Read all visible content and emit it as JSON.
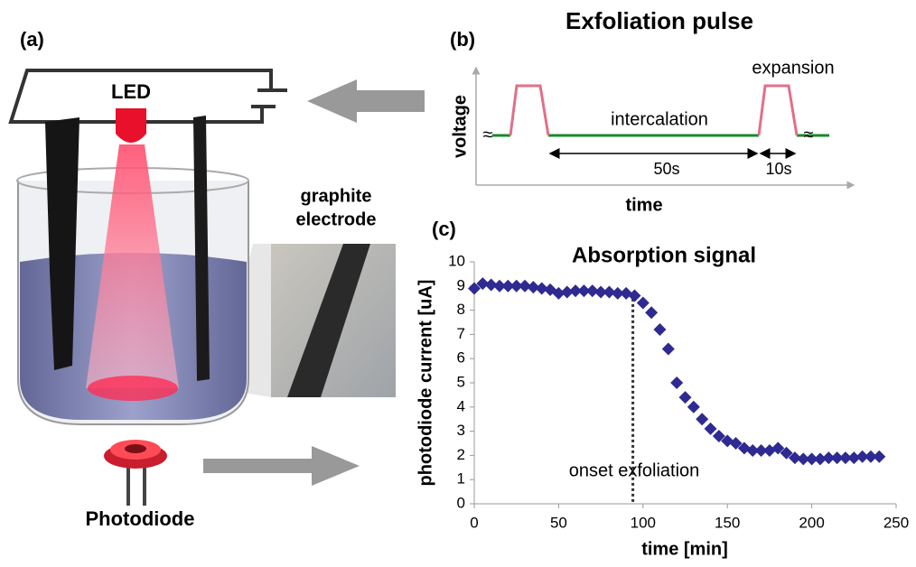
{
  "panel_a": {
    "label": "(a)",
    "led": "LED",
    "electrode_label": [
      "graphite",
      "electrode"
    ],
    "photodiode": "Photodiode"
  },
  "panel_b": {
    "label": "(b)",
    "title": "Exfoliation pulse",
    "ylabel": "voltage",
    "xlabel": "time",
    "intercalation": "intercalation",
    "expansion": "expansion",
    "long_interval": "50s",
    "short_interval": "10s"
  },
  "panel_c_label": "(c)",
  "chart_data": {
    "type": "scatter",
    "title": "Absorption signal",
    "xlabel": "time [min]",
    "ylabel": "photodiode current [uA]",
    "x": [
      0,
      5,
      10,
      15,
      20,
      25,
      30,
      35,
      40,
      45,
      50,
      55,
      60,
      65,
      70,
      75,
      80,
      85,
      90,
      95,
      100,
      105,
      110,
      115,
      120,
      125,
      130,
      135,
      140,
      145,
      150,
      155,
      160,
      165,
      170,
      175,
      180,
      185,
      190,
      195,
      200,
      205,
      210,
      215,
      220,
      225,
      230,
      235,
      240
    ],
    "series": [
      {
        "color": "#2e2a91",
        "values": [
          8.9,
          9.1,
          9.05,
          9.0,
          9.0,
          9.0,
          9.0,
          8.95,
          8.9,
          8.85,
          8.7,
          8.75,
          8.8,
          8.8,
          8.8,
          8.75,
          8.75,
          8.7,
          8.7,
          8.6,
          8.3,
          7.9,
          7.2,
          6.4,
          5.0,
          4.4,
          4.0,
          3.5,
          3.1,
          2.8,
          2.6,
          2.5,
          2.3,
          2.2,
          2.2,
          2.2,
          2.3,
          2.1,
          1.9,
          1.85,
          1.85,
          1.85,
          1.9,
          1.9,
          1.9,
          1.9,
          1.95,
          1.95,
          1.95
        ]
      }
    ],
    "xlim": [
      0,
      250
    ],
    "xticks": [
      0,
      50,
      100,
      150,
      200,
      250
    ],
    "ylim": [
      0,
      10
    ],
    "yticks": [
      0,
      1,
      2,
      3,
      4,
      5,
      6,
      7,
      8,
      9,
      10
    ],
    "annotation": {
      "text": "onset exfoliation",
      "x": 94,
      "y": 8.7
    }
  }
}
